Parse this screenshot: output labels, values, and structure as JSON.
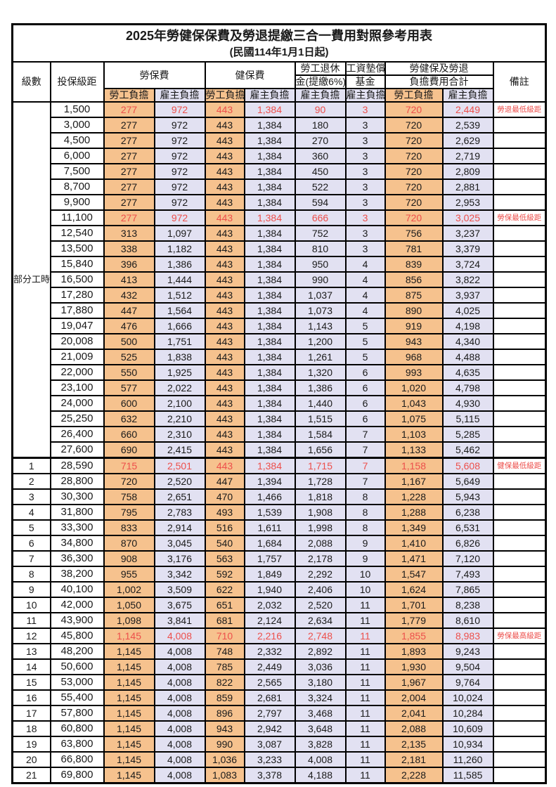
{
  "page": {
    "title": "2025年勞健保保費及勞退提繳三合一費用對照參考用表",
    "subtitle": "(民國114年1月1日起)"
  },
  "header": {
    "level": "級數",
    "bracket": "投保級距",
    "labor_group": "勞保費",
    "health_group": "健保費",
    "pension_line1": "勞工退休",
    "pension_line2": "金(提繳6%)",
    "wagefund_line1": "工資墊償",
    "wagefund_line2": "基金",
    "total_line1": "勞健保及勞退",
    "total_line2": "負擔費用合計",
    "remarks": "備註",
    "employee_label": "勞工負擔",
    "employer_label": "雇主負擔"
  },
  "colors": {
    "employee_bg": "#F6C28E",
    "employer_bg": "#E2E1F2",
    "highlight_text": "#ED4F4B",
    "border": "#000000"
  },
  "table": {
    "part_time": {
      "label": "部分工時",
      "rowspan": 23
    },
    "rows": [
      {
        "level": "",
        "bracket": "1,500",
        "cells": [
          "277",
          "972",
          "443",
          "1,384",
          "90",
          "3",
          "720",
          "2,449"
        ],
        "note": "勞退最低級距",
        "red": true,
        "section": false
      },
      {
        "level": "",
        "bracket": "3,000",
        "cells": [
          "277",
          "972",
          "443",
          "1,384",
          "180",
          "3",
          "720",
          "2,539"
        ],
        "note": "",
        "red": false,
        "section": false
      },
      {
        "level": "",
        "bracket": "4,500",
        "cells": [
          "277",
          "972",
          "443",
          "1,384",
          "270",
          "3",
          "720",
          "2,629"
        ],
        "note": "",
        "red": false,
        "section": false
      },
      {
        "level": "",
        "bracket": "6,000",
        "cells": [
          "277",
          "972",
          "443",
          "1,384",
          "360",
          "3",
          "720",
          "2,719"
        ],
        "note": "",
        "red": false,
        "section": false
      },
      {
        "level": "",
        "bracket": "7,500",
        "cells": [
          "277",
          "972",
          "443",
          "1,384",
          "450",
          "3",
          "720",
          "2,809"
        ],
        "note": "",
        "red": false,
        "section": false
      },
      {
        "level": "",
        "bracket": "8,700",
        "cells": [
          "277",
          "972",
          "443",
          "1,384",
          "522",
          "3",
          "720",
          "2,881"
        ],
        "note": "",
        "red": false,
        "section": false
      },
      {
        "level": "",
        "bracket": "9,900",
        "cells": [
          "277",
          "972",
          "443",
          "1,384",
          "594",
          "3",
          "720",
          "2,953"
        ],
        "note": "",
        "red": false,
        "section": false
      },
      {
        "level": "",
        "bracket": "11,100",
        "cells": [
          "277",
          "972",
          "443",
          "1,384",
          "666",
          "3",
          "720",
          "3,025"
        ],
        "note": "勞保最低級距",
        "red": true,
        "section": false
      },
      {
        "level": "",
        "bracket": "12,540",
        "cells": [
          "313",
          "1,097",
          "443",
          "1,384",
          "752",
          "3",
          "756",
          "3,237"
        ],
        "note": "",
        "red": false,
        "section": false
      },
      {
        "level": "",
        "bracket": "13,500",
        "cells": [
          "338",
          "1,182",
          "443",
          "1,384",
          "810",
          "3",
          "781",
          "3,379"
        ],
        "note": "",
        "red": false,
        "section": false
      },
      {
        "level": "",
        "bracket": "15,840",
        "cells": [
          "396",
          "1,386",
          "443",
          "1,384",
          "950",
          "4",
          "839",
          "3,724"
        ],
        "note": "",
        "red": false,
        "section": false
      },
      {
        "level": "",
        "bracket": "16,500",
        "cells": [
          "413",
          "1,444",
          "443",
          "1,384",
          "990",
          "4",
          "856",
          "3,822"
        ],
        "note": "",
        "red": false,
        "section": false
      },
      {
        "level": "",
        "bracket": "17,280",
        "cells": [
          "432",
          "1,512",
          "443",
          "1,384",
          "1,037",
          "4",
          "875",
          "3,937"
        ],
        "note": "",
        "red": false,
        "section": false
      },
      {
        "level": "",
        "bracket": "17,880",
        "cells": [
          "447",
          "1,564",
          "443",
          "1,384",
          "1,073",
          "4",
          "890",
          "4,025"
        ],
        "note": "",
        "red": false,
        "section": false
      },
      {
        "level": "",
        "bracket": "19,047",
        "cells": [
          "476",
          "1,666",
          "443",
          "1,384",
          "1,143",
          "5",
          "919",
          "4,198"
        ],
        "note": "",
        "red": false,
        "section": false
      },
      {
        "level": "",
        "bracket": "20,008",
        "cells": [
          "500",
          "1,751",
          "443",
          "1,384",
          "1,200",
          "5",
          "943",
          "4,340"
        ],
        "note": "",
        "red": false,
        "section": false
      },
      {
        "level": "",
        "bracket": "21,009",
        "cells": [
          "525",
          "1,838",
          "443",
          "1,384",
          "1,261",
          "5",
          "968",
          "4,488"
        ],
        "note": "",
        "red": false,
        "section": false
      },
      {
        "level": "",
        "bracket": "22,000",
        "cells": [
          "550",
          "1,925",
          "443",
          "1,384",
          "1,320",
          "6",
          "993",
          "4,635"
        ],
        "note": "",
        "red": false,
        "section": false
      },
      {
        "level": "",
        "bracket": "23,100",
        "cells": [
          "577",
          "2,022",
          "443",
          "1,384",
          "1,386",
          "6",
          "1,020",
          "4,798"
        ],
        "note": "",
        "red": false,
        "section": false
      },
      {
        "level": "",
        "bracket": "24,000",
        "cells": [
          "600",
          "2,100",
          "443",
          "1,384",
          "1,440",
          "6",
          "1,043",
          "4,930"
        ],
        "note": "",
        "red": false,
        "section": false
      },
      {
        "level": "",
        "bracket": "25,250",
        "cells": [
          "632",
          "2,210",
          "443",
          "1,384",
          "1,515",
          "6",
          "1,075",
          "5,115"
        ],
        "note": "",
        "red": false,
        "section": false
      },
      {
        "level": "",
        "bracket": "26,400",
        "cells": [
          "660",
          "2,310",
          "443",
          "1,384",
          "1,584",
          "7",
          "1,103",
          "5,285"
        ],
        "note": "",
        "red": false,
        "section": false
      },
      {
        "level": "",
        "bracket": "27,600",
        "cells": [
          "690",
          "2,415",
          "443",
          "1,384",
          "1,656",
          "7",
          "1,133",
          "5,462"
        ],
        "note": "",
        "red": false,
        "section": false
      },
      {
        "level": "1",
        "bracket": "28,590",
        "cells": [
          "715",
          "2,501",
          "443",
          "1,384",
          "1,715",
          "7",
          "1,158",
          "5,608"
        ],
        "note": "健保最低級距",
        "red": true,
        "section": true
      },
      {
        "level": "2",
        "bracket": "28,800",
        "cells": [
          "720",
          "2,520",
          "447",
          "1,394",
          "1,728",
          "7",
          "1,167",
          "5,649"
        ],
        "note": "",
        "red": false,
        "section": false
      },
      {
        "level": "3",
        "bracket": "30,300",
        "cells": [
          "758",
          "2,651",
          "470",
          "1,466",
          "1,818",
          "8",
          "1,228",
          "5,943"
        ],
        "note": "",
        "red": false,
        "section": false
      },
      {
        "level": "4",
        "bracket": "31,800",
        "cells": [
          "795",
          "2,783",
          "493",
          "1,539",
          "1,908",
          "8",
          "1,288",
          "6,238"
        ],
        "note": "",
        "red": false,
        "section": false
      },
      {
        "level": "5",
        "bracket": "33,300",
        "cells": [
          "833",
          "2,914",
          "516",
          "1,611",
          "1,998",
          "8",
          "1,349",
          "6,531"
        ],
        "note": "",
        "red": false,
        "section": false
      },
      {
        "level": "6",
        "bracket": "34,800",
        "cells": [
          "870",
          "3,045",
          "540",
          "1,684",
          "2,088",
          "9",
          "1,410",
          "6,826"
        ],
        "note": "",
        "red": false,
        "section": false
      },
      {
        "level": "7",
        "bracket": "36,300",
        "cells": [
          "908",
          "3,176",
          "563",
          "1,757",
          "2,178",
          "9",
          "1,471",
          "7,120"
        ],
        "note": "",
        "red": false,
        "section": false
      },
      {
        "level": "8",
        "bracket": "38,200",
        "cells": [
          "955",
          "3,342",
          "592",
          "1,849",
          "2,292",
          "10",
          "1,547",
          "7,493"
        ],
        "note": "",
        "red": false,
        "section": false
      },
      {
        "level": "9",
        "bracket": "40,100",
        "cells": [
          "1,002",
          "3,509",
          "622",
          "1,940",
          "2,406",
          "10",
          "1,624",
          "7,865"
        ],
        "note": "",
        "red": false,
        "section": false
      },
      {
        "level": "10",
        "bracket": "42,000",
        "cells": [
          "1,050",
          "3,675",
          "651",
          "2,032",
          "2,520",
          "11",
          "1,701",
          "8,238"
        ],
        "note": "",
        "red": false,
        "section": false
      },
      {
        "level": "11",
        "bracket": "43,900",
        "cells": [
          "1,098",
          "3,841",
          "681",
          "2,124",
          "2,634",
          "11",
          "1,779",
          "8,610"
        ],
        "note": "",
        "red": false,
        "section": false
      },
      {
        "level": "12",
        "bracket": "45,800",
        "cells": [
          "1,145",
          "4,008",
          "710",
          "2,216",
          "2,748",
          "11",
          "1,855",
          "8,983"
        ],
        "note": "勞保最高級距",
        "red": true,
        "section": false
      },
      {
        "level": "13",
        "bracket": "48,200",
        "cells": [
          "1,145",
          "4,008",
          "748",
          "2,332",
          "2,892",
          "11",
          "1,893",
          "9,243"
        ],
        "note": "",
        "red": false,
        "section": false
      },
      {
        "level": "14",
        "bracket": "50,600",
        "cells": [
          "1,145",
          "4,008",
          "785",
          "2,449",
          "3,036",
          "11",
          "1,930",
          "9,504"
        ],
        "note": "",
        "red": false,
        "section": false
      },
      {
        "level": "15",
        "bracket": "53,000",
        "cells": [
          "1,145",
          "4,008",
          "822",
          "2,565",
          "3,180",
          "11",
          "1,967",
          "9,764"
        ],
        "note": "",
        "red": false,
        "section": false
      },
      {
        "level": "16",
        "bracket": "55,400",
        "cells": [
          "1,145",
          "4,008",
          "859",
          "2,681",
          "3,324",
          "11",
          "2,004",
          "10,024"
        ],
        "note": "",
        "red": false,
        "section": false
      },
      {
        "level": "17",
        "bracket": "57,800",
        "cells": [
          "1,145",
          "4,008",
          "896",
          "2,797",
          "3,468",
          "11",
          "2,041",
          "10,284"
        ],
        "note": "",
        "red": false,
        "section": false
      },
      {
        "level": "18",
        "bracket": "60,800",
        "cells": [
          "1,145",
          "4,008",
          "943",
          "2,942",
          "3,648",
          "11",
          "2,088",
          "10,609"
        ],
        "note": "",
        "red": false,
        "section": false
      },
      {
        "level": "19",
        "bracket": "63,800",
        "cells": [
          "1,145",
          "4,008",
          "990",
          "3,087",
          "3,828",
          "11",
          "2,135",
          "10,934"
        ],
        "note": "",
        "red": false,
        "section": false
      },
      {
        "level": "20",
        "bracket": "66,800",
        "cells": [
          "1,145",
          "4,008",
          "1,036",
          "3,233",
          "4,008",
          "11",
          "2,181",
          "11,260"
        ],
        "note": "",
        "red": false,
        "section": false
      },
      {
        "level": "21",
        "bracket": "69,800",
        "cells": [
          "1,145",
          "4,008",
          "1,083",
          "3,378",
          "4,188",
          "11",
          "2,228",
          "11,585"
        ],
        "note": "",
        "red": false,
        "section": false
      }
    ]
  }
}
